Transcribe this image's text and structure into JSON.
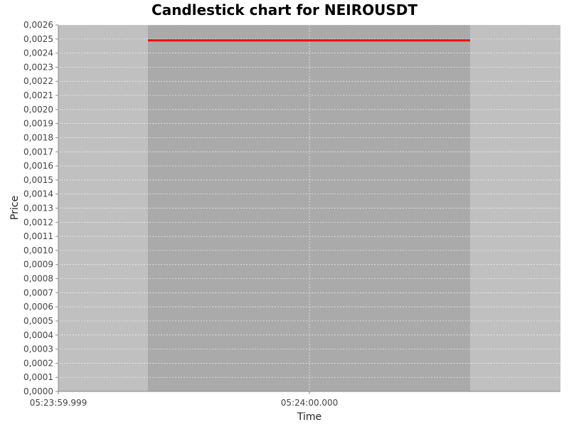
{
  "chart_data": {
    "type": "candlestick",
    "title": "Candlestick chart for NEIROUSDT",
    "xlabel": "Time",
    "ylabel": "Price",
    "ylim": [
      0,
      0.0026
    ],
    "y_ticks": [
      "0,0000",
      "0,0001",
      "0,0002",
      "0,0003",
      "0,0004",
      "0,0005",
      "0,0006",
      "0,0007",
      "0,0008",
      "0,0009",
      "0,0010",
      "0,0011",
      "0,0012",
      "0,0013",
      "0,0014",
      "0,0015",
      "0,0016",
      "0,0017",
      "0,0018",
      "0,0019",
      "0,0020",
      "0,0021",
      "0,0022",
      "0,0023",
      "0,0024",
      "0,0025",
      "0,0026"
    ],
    "x_ticks": [
      "05:23:59.999",
      "05:24:00.000"
    ],
    "candles": [
      {
        "time": "05:24:00.000",
        "open": 0.00249,
        "high": 0.00249,
        "low": 0.00249,
        "close": 0.00249,
        "color": "#ff0000"
      }
    ],
    "grid": true,
    "colors": {
      "plot_background": "#c0c0c0",
      "candle_band": "#aaaaaa",
      "gridline": "#ffffff",
      "candle": "#ff0000"
    }
  }
}
